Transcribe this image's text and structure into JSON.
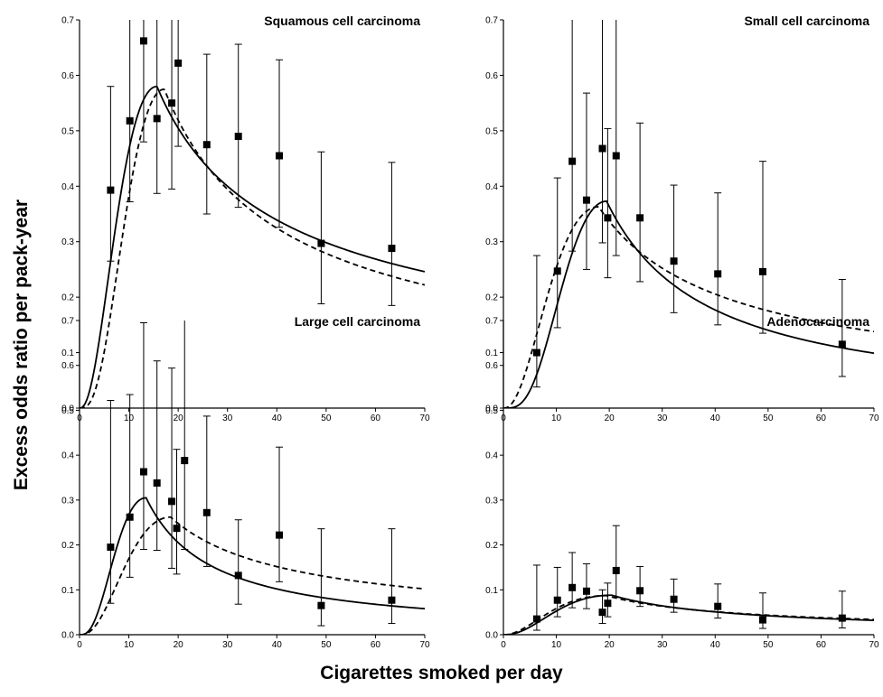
{
  "ylabel": "Excess odds ratio per pack-year",
  "xlabel": "Cigarettes smoked per day",
  "chart_data": [
    {
      "type": "scatter",
      "title": "Squamous cell carcinoma",
      "xlim": [
        0,
        70
      ],
      "ylim": [
        0,
        0.7
      ],
      "xticks": [
        "0",
        "10",
        "20",
        "30",
        "40",
        "50",
        "60",
        "70"
      ],
      "yticks": [
        "0.0",
        "0.1",
        "0.2",
        "0.3",
        "0.4",
        "0.5",
        "0.6",
        "0.7"
      ],
      "points": [
        {
          "x": 6.3,
          "y": 0.393,
          "lo": 0.265,
          "hi": 0.58
        },
        {
          "x": 10.2,
          "y": 0.518,
          "lo": 0.372,
          "hi": 0.7
        },
        {
          "x": 13.0,
          "y": 0.662,
          "lo": 0.48,
          "hi": 0.7
        },
        {
          "x": 15.7,
          "y": 0.522,
          "lo": 0.387,
          "hi": 0.7
        },
        {
          "x": 18.7,
          "y": 0.55,
          "lo": 0.395,
          "hi": 0.7
        },
        {
          "x": 20.0,
          "y": 0.622,
          "lo": 0.472,
          "hi": 0.7
        },
        {
          "x": 25.8,
          "y": 0.475,
          "lo": 0.35,
          "hi": 0.638
        },
        {
          "x": 32.2,
          "y": 0.49,
          "lo": 0.362,
          "hi": 0.656
        },
        {
          "x": 40.5,
          "y": 0.455,
          "lo": 0.326,
          "hi": 0.628
        },
        {
          "x": 49.0,
          "y": 0.297,
          "lo": 0.188,
          "hi": 0.462
        },
        {
          "x": 63.3,
          "y": 0.288,
          "lo": 0.185,
          "hi": 0.443
        }
      ],
      "curve_solid": {
        "peak_x": 15.7,
        "peak_y": 0.58,
        "k": 2.5,
        "y_end": 0.246
      },
      "curve_dashed": {
        "peak_x": 17.2,
        "peak_y": 0.575,
        "k": 3.3,
        "y_end": 0.222
      }
    },
    {
      "type": "scatter",
      "title": "Small cell carcinoma",
      "xlim": [
        0,
        70
      ],
      "ylim": [
        0,
        0.7
      ],
      "xticks": [
        "0",
        "10",
        "20",
        "30",
        "40",
        "50",
        "60",
        "70"
      ],
      "yticks": [
        "0.0",
        "0.1",
        "0.2",
        "0.3",
        "0.4",
        "0.5",
        "0.6",
        "0.7"
      ],
      "points": [
        {
          "x": 6.3,
          "y": 0.1,
          "lo": 0.038,
          "hi": 0.275
        },
        {
          "x": 10.2,
          "y": 0.247,
          "lo": 0.145,
          "hi": 0.415
        },
        {
          "x": 13.0,
          "y": 0.445,
          "lo": 0.283,
          "hi": 0.7
        },
        {
          "x": 15.7,
          "y": 0.375,
          "lo": 0.25,
          "hi": 0.568
        },
        {
          "x": 18.7,
          "y": 0.468,
          "lo": 0.298,
          "hi": 0.7
        },
        {
          "x": 19.7,
          "y": 0.343,
          "lo": 0.235,
          "hi": 0.504
        },
        {
          "x": 21.3,
          "y": 0.455,
          "lo": 0.275,
          "hi": 0.7
        },
        {
          "x": 25.8,
          "y": 0.343,
          "lo": 0.228,
          "hi": 0.514
        },
        {
          "x": 32.2,
          "y": 0.265,
          "lo": 0.172,
          "hi": 0.402
        },
        {
          "x": 40.5,
          "y": 0.242,
          "lo": 0.15,
          "hi": 0.388
        },
        {
          "x": 49.0,
          "y": 0.246,
          "lo": 0.135,
          "hi": 0.445
        },
        {
          "x": 64.0,
          "y": 0.115,
          "lo": 0.057,
          "hi": 0.232
        }
      ],
      "curve_solid": {
        "peak_x": 19.5,
        "peak_y": 0.373,
        "k": 4.0,
        "y_end": 0.099
      },
      "curve_dashed": {
        "peak_x": 18.0,
        "peak_y": 0.363,
        "k": 2.5,
        "y_end": 0.138
      }
    },
    {
      "type": "scatter",
      "title": "Large cell carcinoma",
      "xlim": [
        0,
        70
      ],
      "ylim": [
        0,
        0.7
      ],
      "xticks": [
        "0",
        "10",
        "20",
        "30",
        "40",
        "50",
        "60",
        "70"
      ],
      "yticks": [
        "0.0",
        "0.1",
        "0.2",
        "0.3",
        "0.4",
        "0.5",
        "0.6",
        "0.7"
      ],
      "points": [
        {
          "x": 6.3,
          "y": 0.195,
          "lo": 0.07,
          "hi": 0.522
        },
        {
          "x": 10.2,
          "y": 0.262,
          "lo": 0.128,
          "hi": 0.535
        },
        {
          "x": 13.0,
          "y": 0.363,
          "lo": 0.19,
          "hi": 0.695
        },
        {
          "x": 15.7,
          "y": 0.338,
          "lo": 0.188,
          "hi": 0.61
        },
        {
          "x": 18.7,
          "y": 0.297,
          "lo": 0.148,
          "hi": 0.594
        },
        {
          "x": 19.7,
          "y": 0.237,
          "lo": 0.135,
          "hi": 0.413
        },
        {
          "x": 21.3,
          "y": 0.388,
          "lo": 0.19,
          "hi": 0.7
        },
        {
          "x": 25.8,
          "y": 0.272,
          "lo": 0.152,
          "hi": 0.487
        },
        {
          "x": 32.2,
          "y": 0.132,
          "lo": 0.068,
          "hi": 0.256
        },
        {
          "x": 40.5,
          "y": 0.222,
          "lo": 0.118,
          "hi": 0.418
        },
        {
          "x": 49.0,
          "y": 0.065,
          "lo": 0.02,
          "hi": 0.236
        },
        {
          "x": 63.3,
          "y": 0.077,
          "lo": 0.025,
          "hi": 0.236
        }
      ],
      "curve_solid": {
        "peak_x": 13.5,
        "peak_y": 0.305,
        "k": 3.2,
        "y_end": 0.058
      },
      "curve_dashed": {
        "peak_x": 18.5,
        "peak_y": 0.262,
        "k": 2.8,
        "y_end": 0.102
      }
    },
    {
      "type": "scatter",
      "title": "Adenocarcinoma",
      "xlim": [
        0,
        70
      ],
      "ylim": [
        0,
        0.7
      ],
      "xticks": [
        "0",
        "10",
        "20",
        "30",
        "40",
        "50",
        "60",
        "70"
      ],
      "yticks": [
        "0.0",
        "0.1",
        "0.2",
        "0.3",
        "0.4",
        "0.5",
        "0.6",
        "0.7"
      ],
      "points": [
        {
          "x": 6.3,
          "y": 0.035,
          "lo": 0.01,
          "hi": 0.155
        },
        {
          "x": 10.2,
          "y": 0.077,
          "lo": 0.04,
          "hi": 0.15
        },
        {
          "x": 13.0,
          "y": 0.105,
          "lo": 0.06,
          "hi": 0.183
        },
        {
          "x": 15.7,
          "y": 0.097,
          "lo": 0.058,
          "hi": 0.158
        },
        {
          "x": 18.7,
          "y": 0.05,
          "lo": 0.025,
          "hi": 0.1
        },
        {
          "x": 19.7,
          "y": 0.07,
          "lo": 0.04,
          "hi": 0.115
        },
        {
          "x": 21.3,
          "y": 0.143,
          "lo": 0.083,
          "hi": 0.243
        },
        {
          "x": 25.8,
          "y": 0.098,
          "lo": 0.063,
          "hi": 0.152
        },
        {
          "x": 32.2,
          "y": 0.079,
          "lo": 0.05,
          "hi": 0.124
        },
        {
          "x": 40.5,
          "y": 0.063,
          "lo": 0.037,
          "hi": 0.113
        },
        {
          "x": 49.0,
          "y": 0.033,
          "lo": 0.014,
          "hi": 0.093
        },
        {
          "x": 64.0,
          "y": 0.037,
          "lo": 0.015,
          "hi": 0.097
        }
      ],
      "curve_solid": {
        "peak_x": 20.5,
        "peak_y": 0.088,
        "k": 2.5,
        "y_end": 0.032
      },
      "curve_dashed": {
        "peak_x": 19.5,
        "peak_y": 0.087,
        "k": 2.2,
        "y_end": 0.034
      }
    }
  ]
}
